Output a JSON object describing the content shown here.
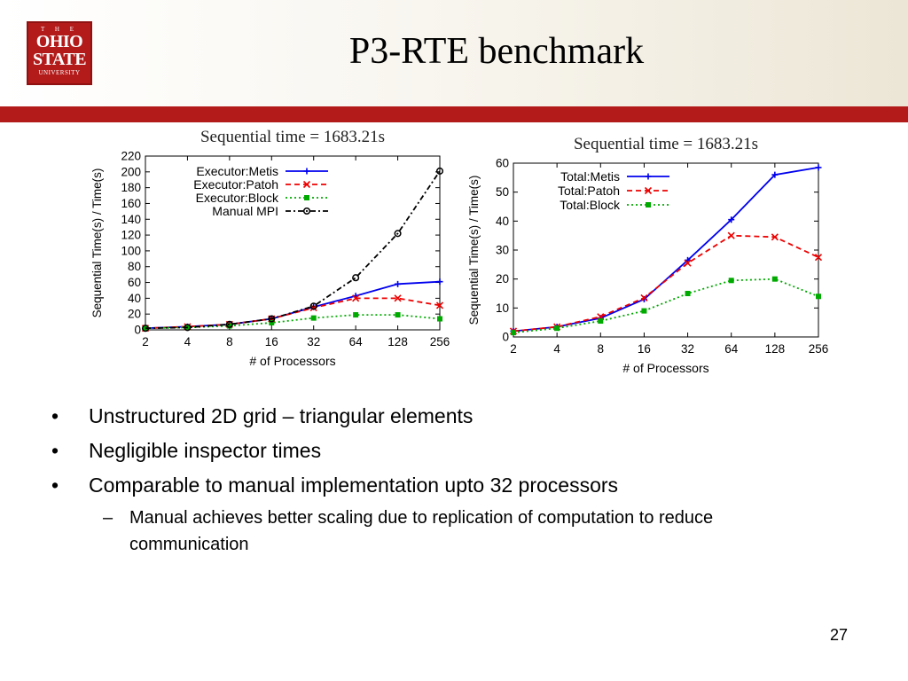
{
  "slide": {
    "title": "P3-RTE benchmark",
    "page_number": "27",
    "logo": {
      "the": "T H E",
      "line1": "OHIO",
      "line2": "STATE",
      "line3": "UNIVERSITY"
    },
    "brand_color": "#b31b1b",
    "bullets": [
      "Unstructured 2D grid – triangular elements",
      "Negligible inspector times",
      "Comparable to manual implementation upto 32 processors"
    ],
    "sub_bullets": [
      "Manual achieves better scaling due to replication of computation to reduce communication"
    ]
  },
  "chart_data": [
    {
      "type": "line",
      "title": "Sequential time = 1683.21s",
      "xlabel": "# of Processors",
      "ylabel": "Sequential Time(s) / Time(s)",
      "categories": [
        "2",
        "4",
        "8",
        "16",
        "32",
        "64",
        "128",
        "256"
      ],
      "ylim": [
        0,
        220
      ],
      "yticks": [
        0,
        20,
        40,
        60,
        80,
        100,
        120,
        140,
        160,
        180,
        200,
        220
      ],
      "legend_position": "top-left",
      "series": [
        {
          "name": "Executor:Metis",
          "color": "#0000ee",
          "dash": "solid",
          "marker": "plus",
          "values": [
            2,
            4,
            7,
            14,
            29,
            43,
            58,
            61
          ]
        },
        {
          "name": "Executor:Patoh",
          "color": "#ee0000",
          "dash": "dashed",
          "marker": "x",
          "values": [
            2,
            4,
            7,
            14,
            28,
            40,
            40,
            31
          ]
        },
        {
          "name": "Executor:Block",
          "color": "#00aa00",
          "dash": "dotted",
          "marker": "square",
          "values": [
            2,
            3,
            5,
            9,
            15,
            19,
            19,
            14
          ]
        },
        {
          "name": "Manual MPI",
          "color": "#000000",
          "dash": "dashdot",
          "marker": "circle",
          "values": [
            2,
            3,
            7,
            14,
            30,
            66,
            122,
            201
          ]
        }
      ]
    },
    {
      "type": "line",
      "title": "Sequential time = 1683.21s",
      "xlabel": "# of Processors",
      "ylabel": "Sequential Time(s) / Time(s)",
      "categories": [
        "2",
        "4",
        "8",
        "16",
        "32",
        "64",
        "128",
        "256"
      ],
      "ylim": [
        0,
        60
      ],
      "yticks": [
        0,
        10,
        20,
        30,
        40,
        50,
        60
      ],
      "legend_position": "top-left",
      "series": [
        {
          "name": "Total:Metis",
          "color": "#0000ee",
          "dash": "solid",
          "marker": "plus",
          "values": [
            2,
            3.5,
            6.5,
            13,
            26.5,
            40.5,
            56,
            58.5
          ]
        },
        {
          "name": "Total:Patoh",
          "color": "#ee0000",
          "dash": "dashed",
          "marker": "x",
          "values": [
            2,
            3.5,
            7,
            13.5,
            25.5,
            35,
            34.5,
            27.5
          ]
        },
        {
          "name": "Total:Block",
          "color": "#00aa00",
          "dash": "dotted",
          "marker": "square",
          "values": [
            1.5,
            3,
            5.5,
            9,
            15,
            19.5,
            20,
            14
          ]
        }
      ]
    }
  ]
}
